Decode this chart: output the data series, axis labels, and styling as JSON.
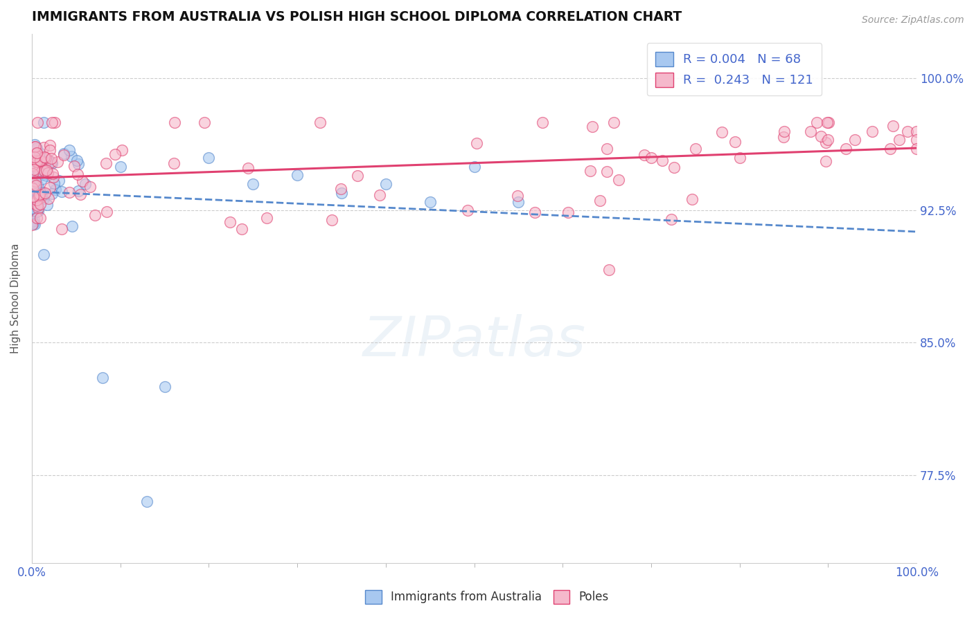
{
  "title": "IMMIGRANTS FROM AUSTRALIA VS POLISH HIGH SCHOOL DIPLOMA CORRELATION CHART",
  "source": "Source: ZipAtlas.com",
  "ylabel": "High School Diploma",
  "legend_label_blue": "Immigrants from Australia",
  "legend_label_pink": "Poles",
  "r_blue": 0.004,
  "n_blue": 68,
  "r_pink": 0.243,
  "n_pink": 121,
  "color_blue_fill": "#A8C8F0",
  "color_pink_fill": "#F5B8CB",
  "color_blue_edge": "#5588CC",
  "color_pink_edge": "#E04070",
  "color_blue_line": "#5588CC",
  "color_pink_line": "#E04070",
  "color_label": "#4466CC",
  "title_color": "#111111",
  "ytick_labels": [
    "77.5%",
    "85.0%",
    "92.5%",
    "100.0%"
  ],
  "ytick_values": [
    0.775,
    0.85,
    0.925,
    1.0
  ],
  "xtick_labels": [
    "0.0%",
    "100.0%"
  ],
  "xlim": [
    0.0,
    1.0
  ],
  "ylim": [
    0.725,
    1.025
  ],
  "background_color": "#FFFFFF",
  "watermark": "ZIPatlas",
  "grid_color": "#CCCCCC"
}
